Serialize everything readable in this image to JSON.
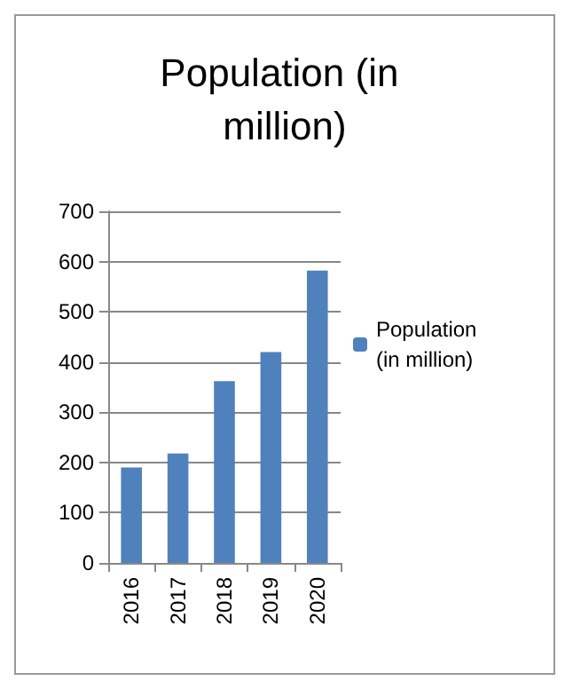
{
  "chart_data": {
    "type": "bar",
    "title": "Population (in million)",
    "categories": [
      "2016",
      "2017",
      "2018",
      "2019",
      "2020"
    ],
    "series": [
      {
        "name": "Population (in million)",
        "color": "#4f81bd",
        "values": [
          190,
          218,
          362,
          420,
          582
        ]
      }
    ],
    "ylim": [
      0,
      700
    ],
    "yticks": [
      0,
      100,
      200,
      300,
      400,
      500,
      600,
      700
    ],
    "grid": "y",
    "legend": "right"
  }
}
